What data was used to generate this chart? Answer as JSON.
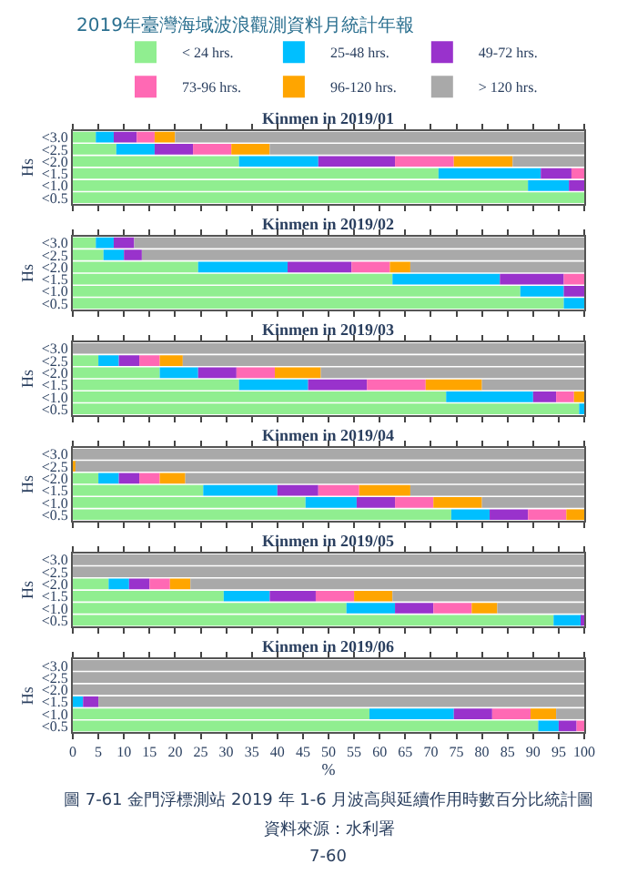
{
  "chart_data": [
    {
      "type": "bar",
      "orientation": "horizontal",
      "stacked": true,
      "title": "Kinmen in 2019/01",
      "ylabel": "Hs",
      "categories": [
        "<3.0",
        "<2.5",
        "<2.0",
        "<1.5",
        "<1.0",
        "<0.5"
      ],
      "xlim": [
        0,
        100
      ],
      "xticks": [
        0,
        5,
        10,
        15,
        20,
        25,
        30,
        35,
        40,
        45,
        50,
        55,
        60,
        65,
        70,
        75,
        80,
        85,
        90,
        95,
        100
      ],
      "tick_labels": "y",
      "legend": "top",
      "annotations": [
        "2019年臺灣海域波浪觀測資料月統計年報"
      ],
      "series": [
        {
          "name": "< 24 hrs.",
          "color": "#90ee90",
          "values": [
            4.5,
            8.5,
            32.5,
            71.5,
            89,
            100
          ]
        },
        {
          "name": "25-48 hrs.",
          "color": "#00bfff",
          "values": [
            3.5,
            7.5,
            15.5,
            20,
            8,
            0
          ]
        },
        {
          "name": "49-72 hrs.",
          "color": "#9932cc",
          "values": [
            4.5,
            7.5,
            15,
            6,
            3,
            0
          ]
        },
        {
          "name": "73-96 hrs.",
          "color": "#ff69b4",
          "values": [
            3.5,
            7.5,
            11.5,
            2.5,
            0,
            0
          ]
        },
        {
          "name": "96-120 hrs.",
          "color": "#ffa500",
          "values": [
            4,
            7.5,
            11.5,
            0,
            0,
            0
          ]
        },
        {
          "name": "> 120 hrs.",
          "color": "#a9a9a9",
          "values": [
            80,
            61.5,
            14,
            0,
            0,
            0
          ]
        }
      ]
    },
    {
      "type": "bar",
      "orientation": "horizontal",
      "stacked": true,
      "title": "Kinmen in 2019/02",
      "ylabel": "Hs",
      "categories": [
        "<3.0",
        "<2.5",
        "<2.0",
        "<1.5",
        "<1.0",
        "<0.5"
      ],
      "xlim": [
        0,
        100
      ],
      "xticks": [
        0,
        5,
        10,
        15,
        20,
        25,
        30,
        35,
        40,
        45,
        50,
        55,
        60,
        65,
        70,
        75,
        80,
        85,
        90,
        95,
        100
      ],
      "tick_labels": "y",
      "series": [
        {
          "color": "#90ee90",
          "values": [
            4.5,
            6,
            24.5,
            62.5,
            87.5,
            96
          ]
        },
        {
          "color": "#00bfff",
          "values": [
            3.5,
            4,
            17.5,
            21,
            8.5,
            4
          ]
        },
        {
          "color": "#9932cc",
          "values": [
            4,
            3.5,
            12.5,
            12.5,
            4,
            0
          ]
        },
        {
          "color": "#ff69b4",
          "values": [
            0,
            0,
            7.5,
            4,
            0,
            0
          ]
        },
        {
          "color": "#ffa500",
          "values": [
            0,
            0,
            4,
            0,
            0,
            0
          ]
        },
        {
          "color": "#a9a9a9",
          "values": [
            88,
            86.5,
            34,
            0,
            0,
            0
          ]
        }
      ]
    },
    {
      "type": "bar",
      "orientation": "horizontal",
      "stacked": true,
      "title": "Kinmen in 2019/03",
      "ylabel": "Hs",
      "categories": [
        "<3.0",
        "<2.5",
        "<2.0",
        "<1.5",
        "<1.0",
        "<0.5"
      ],
      "xlim": [
        0,
        100
      ],
      "xticks": [
        0,
        5,
        10,
        15,
        20,
        25,
        30,
        35,
        40,
        45,
        50,
        55,
        60,
        65,
        70,
        75,
        80,
        85,
        90,
        95,
        100
      ],
      "tick_labels": "y",
      "series": [
        {
          "color": "#90ee90",
          "values": [
            0,
            5,
            17,
            32.5,
            73,
            99
          ]
        },
        {
          "color": "#00bfff",
          "values": [
            0,
            4,
            7.5,
            13.5,
            17,
            1
          ]
        },
        {
          "color": "#9932cc",
          "values": [
            0,
            4,
            7.5,
            11.5,
            4.5,
            0
          ]
        },
        {
          "color": "#ff69b4",
          "values": [
            0,
            4,
            7.5,
            11.5,
            3.5,
            0
          ]
        },
        {
          "color": "#ffa500",
          "values": [
            0,
            4.5,
            9,
            11,
            2,
            0
          ]
        },
        {
          "color": "#a9a9a9",
          "values": [
            100,
            78.5,
            51.5,
            20,
            0,
            0
          ]
        }
      ]
    },
    {
      "type": "bar",
      "orientation": "horizontal",
      "stacked": true,
      "title": "Kinmen in 2019/04",
      "ylabel": "Hs",
      "categories": [
        "<3.0",
        "<2.5",
        "<2.0",
        "<1.5",
        "<1.0",
        "<0.5"
      ],
      "xlim": [
        0,
        100
      ],
      "xticks": [
        0,
        5,
        10,
        15,
        20,
        25,
        30,
        35,
        40,
        45,
        50,
        55,
        60,
        65,
        70,
        75,
        80,
        85,
        90,
        95,
        100
      ],
      "tick_labels": "y",
      "series": [
        {
          "color": "#90ee90",
          "values": [
            0,
            0,
            5,
            25.5,
            45.5,
            74
          ]
        },
        {
          "color": "#00bfff",
          "values": [
            0,
            0,
            4,
            14.5,
            10,
            7.5
          ]
        },
        {
          "color": "#9932cc",
          "values": [
            0,
            0,
            4,
            8,
            7.5,
            7.5
          ]
        },
        {
          "color": "#ff69b4",
          "values": [
            0,
            0,
            4,
            8,
            7.5,
            7.5
          ]
        },
        {
          "color": "#ffa500",
          "values": [
            0,
            0.5,
            5,
            10,
            9.5,
            3.5
          ]
        },
        {
          "color": "#a9a9a9",
          "values": [
            100,
            99.5,
            78,
            34,
            20,
            0
          ]
        }
      ]
    },
    {
      "type": "bar",
      "orientation": "horizontal",
      "stacked": true,
      "title": "Kinmen in 2019/05",
      "ylabel": "Hs",
      "categories": [
        "<3.0",
        "<2.5",
        "<2.0",
        "<1.5",
        "<1.0",
        "<0.5"
      ],
      "xlim": [
        0,
        100
      ],
      "xticks": [
        0,
        5,
        10,
        15,
        20,
        25,
        30,
        35,
        40,
        45,
        50,
        55,
        60,
        65,
        70,
        75,
        80,
        85,
        90,
        95,
        100
      ],
      "tick_labels": "y",
      "series": [
        {
          "color": "#90ee90",
          "values": [
            0,
            0,
            7,
            29.5,
            53.5,
            94
          ]
        },
        {
          "color": "#00bfff",
          "values": [
            0,
            0,
            4,
            9,
            9.5,
            5.5
          ]
        },
        {
          "color": "#9932cc",
          "values": [
            0,
            0,
            4,
            9,
            7.5,
            0.5
          ]
        },
        {
          "color": "#ff69b4",
          "values": [
            0,
            0,
            4,
            7.5,
            7.5,
            0
          ]
        },
        {
          "color": "#ffa500",
          "values": [
            0,
            0,
            4,
            7.5,
            5,
            0
          ]
        },
        {
          "color": "#a9a9a9",
          "values": [
            100,
            100,
            77,
            37.5,
            17,
            0
          ]
        }
      ]
    },
    {
      "type": "bar",
      "orientation": "horizontal",
      "stacked": true,
      "title": "Kinmen in 2019/06",
      "ylabel": "Hs",
      "xlabel": "%",
      "categories": [
        "<3.0",
        "<2.5",
        "<2.0",
        "<1.5",
        "<1.0",
        "<0.5"
      ],
      "xlim": [
        0,
        100
      ],
      "xticks": [
        0,
        5,
        10,
        15,
        20,
        25,
        30,
        35,
        40,
        45,
        50,
        55,
        60,
        65,
        70,
        75,
        80,
        85,
        90,
        95,
        100
      ],
      "annotations": [
        "圖 7-61 金門浮標測站 2019 年 1-6 月波高與延續作用時數百分比統計圖",
        "資料來源：水利署",
        "7-60"
      ],
      "series": [
        {
          "color": "#90ee90",
          "values": [
            0,
            0,
            0,
            0,
            58,
            91
          ]
        },
        {
          "color": "#00bfff",
          "values": [
            0,
            0,
            0,
            2,
            16.5,
            4
          ]
        },
        {
          "color": "#9932cc",
          "values": [
            0,
            0,
            0,
            3,
            7.5,
            3.5
          ]
        },
        {
          "color": "#ff69b4",
          "values": [
            0,
            0,
            0,
            0,
            7.5,
            1.5
          ]
        },
        {
          "color": "#ffa500",
          "values": [
            0,
            0,
            0,
            0,
            5,
            0
          ]
        },
        {
          "color": "#a9a9a9",
          "values": [
            100,
            100,
            100,
            95,
            5.5,
            0
          ]
        }
      ]
    }
  ]
}
